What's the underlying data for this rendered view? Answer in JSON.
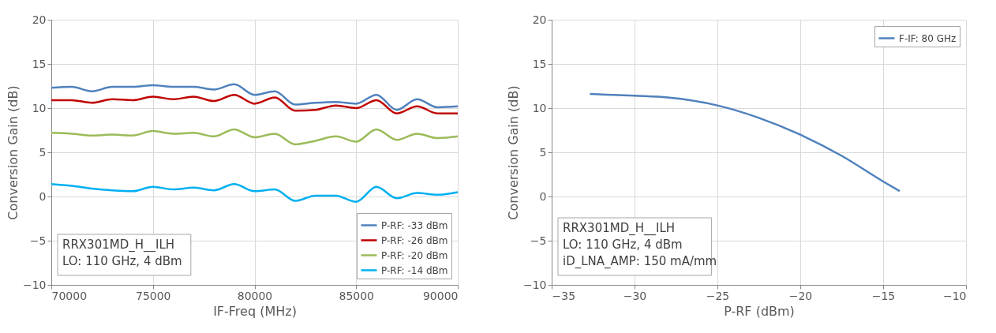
{
  "chart_data": [
    {
      "type": "line",
      "xlabel": "IF-Freq (MHz)",
      "ylabel": "Conversion Gain (dB)",
      "x": [
        70000,
        71000,
        72000,
        73000,
        74000,
        75000,
        76000,
        77000,
        78000,
        79000,
        80000,
        81000,
        82000,
        83000,
        84000,
        85000,
        86000,
        87000,
        88000,
        89000,
        90000
      ],
      "series": [
        {
          "name": "P-RF: -33 dBm",
          "color": "#4f81bd",
          "values": [
            12.3,
            12.4,
            11.9,
            12.4,
            12.4,
            12.6,
            12.4,
            12.4,
            12.1,
            12.7,
            11.5,
            11.9,
            10.4,
            10.6,
            10.7,
            10.5,
            11.5,
            9.8,
            11.0,
            10.1,
            10.2
          ]
        },
        {
          "name": "P-RF: -26 dBm",
          "color": "#c00000",
          "values": [
            10.9,
            10.9,
            10.6,
            11.0,
            10.9,
            11.3,
            11.0,
            11.3,
            10.8,
            11.5,
            10.5,
            11.2,
            9.7,
            9.8,
            10.3,
            10.0,
            10.9,
            9.4,
            10.2,
            9.4,
            9.4
          ]
        },
        {
          "name": "P-RF: -20 dBm",
          "color": "#9bbb59",
          "values": [
            7.2,
            7.1,
            6.9,
            7.0,
            6.9,
            7.4,
            7.1,
            7.2,
            6.8,
            7.6,
            6.7,
            7.1,
            5.9,
            6.3,
            6.8,
            6.2,
            7.6,
            6.4,
            7.1,
            6.6,
            6.8
          ]
        },
        {
          "name": "P-RF: -14 dBm",
          "color": "#00b0f0",
          "values": [
            1.4,
            1.2,
            0.9,
            0.7,
            0.6,
            1.1,
            0.8,
            1.0,
            0.7,
            1.4,
            0.6,
            0.8,
            -0.5,
            0.1,
            0.1,
            -0.6,
            1.1,
            -0.2,
            0.4,
            0.2,
            0.5
          ]
        }
      ],
      "xlim": [
        70000,
        90000
      ],
      "xticks": [
        70000,
        75000,
        80000,
        85000,
        90000
      ],
      "ylim": [
        -10,
        20
      ],
      "yticks": [
        -10,
        -5,
        0,
        5,
        10,
        15,
        20
      ],
      "grid": true,
      "legend": "bottom right",
      "annotations": [
        "RRX301MD_H__ILH",
        "LO: 110 GHz, 4 dBm"
      ]
    },
    {
      "type": "line",
      "xlabel": "P-RF (dBm)",
      "ylabel": "Conversion Gain (dB)",
      "x": [
        -32.7,
        -30,
        -28,
        -25,
        -22.5,
        -20,
        -17.5,
        -15,
        -14
      ],
      "series": [
        {
          "name": "F-IF: 80 GHz",
          "color": "#4f81bd",
          "values": [
            11.6,
            11.4,
            11.2,
            10.3,
            8.9,
            7.0,
            4.6,
            1.7,
            0.6
          ]
        }
      ],
      "xlim": [
        -35,
        -10
      ],
      "xticks": [
        -35,
        -30,
        -25,
        -20,
        -15,
        -10
      ],
      "ylim": [
        -10,
        20
      ],
      "yticks": [
        -10,
        -5,
        0,
        5,
        10,
        15,
        20
      ],
      "grid": true,
      "legend": "top right",
      "annotations": [
        "RRX301MD_H__ILH",
        "LO: 110 GHz, 4 dBm",
        "iD_LNA_AMP: 150 mA/mm"
      ]
    }
  ]
}
